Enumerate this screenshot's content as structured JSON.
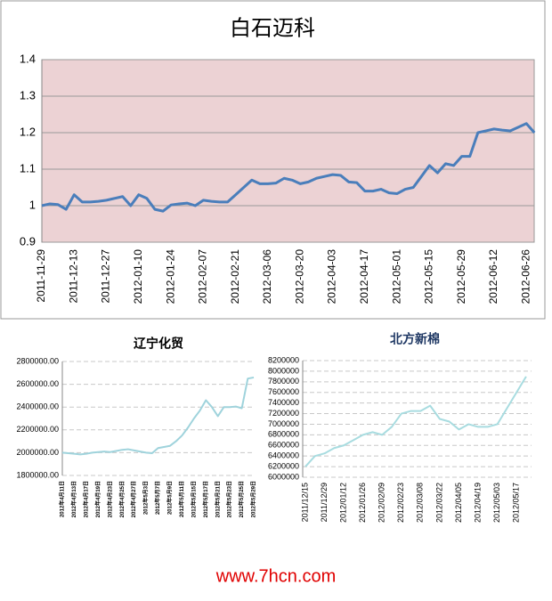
{
  "chart_data": [
    {
      "type": "line",
      "title": "白石迈科",
      "color": "#4a7ebb",
      "grid": true,
      "categories": [
        "2011-11-29",
        null,
        null,
        null,
        "2011-12-13",
        null,
        null,
        null,
        "2011-12-27",
        null,
        null,
        null,
        "2012-01-10",
        null,
        null,
        null,
        "2012-01-24",
        null,
        null,
        null,
        "2012-02-07",
        null,
        null,
        null,
        "2012-02-21",
        null,
        null,
        null,
        "2012-03-06",
        null,
        null,
        null,
        "2012-03-20",
        null,
        null,
        null,
        "2012-04-03",
        null,
        null,
        null,
        "2012-04-17",
        null,
        null,
        null,
        "2012-05-01",
        null,
        null,
        null,
        "2012-05-15",
        null,
        null,
        null,
        "2012-05-29",
        null,
        null,
        null,
        "2012-06-12",
        null,
        null,
        null,
        "2012-06-26",
        null
      ],
      "values": [
        1.0,
        1.005,
        1.003,
        0.99,
        1.03,
        1.01,
        1.01,
        1.012,
        1.015,
        1.02,
        1.025,
        1.0,
        1.03,
        1.02,
        0.99,
        0.985,
        1.002,
        1.005,
        1.007,
        1.0,
        1.015,
        1.012,
        1.01,
        1.01,
        1.03,
        1.05,
        1.07,
        1.06,
        1.06,
        1.062,
        1.075,
        1.07,
        1.06,
        1.065,
        1.075,
        1.08,
        1.085,
        1.083,
        1.065,
        1.063,
        1.04,
        1.04,
        1.045,
        1.035,
        1.033,
        1.045,
        1.05,
        1.08,
        1.11,
        1.09,
        1.115,
        1.11,
        1.135,
        1.135,
        1.2,
        1.205,
        1.21,
        1.207,
        1.205,
        1.215,
        1.225,
        1.2
      ],
      "ylim": [
        0.9,
        1.4
      ],
      "yticks": [
        0.9,
        1,
        1.1,
        1.2,
        1.3,
        1.4
      ]
    },
    {
      "type": "line",
      "title": "辽宁化贸",
      "color": "#9fd3dc",
      "grid": true,
      "categories": [
        "2012年4月11日",
        null,
        "2012年4月13日",
        null,
        "2012年4月17日",
        null,
        "2012年4月19日",
        null,
        "2012年4月23日",
        null,
        "2012年4月25日",
        null,
        "2012年4月27日",
        null,
        "2012年5月3日",
        null,
        "2012年5月7日",
        null,
        "2012年5月9日",
        null,
        "2012年5月11日",
        null,
        "2012年5月15日",
        null,
        "2012年5月17日",
        null,
        "2012年5月21日",
        null,
        "2012年5月23日",
        null,
        "2012年5月25日",
        null,
        "2012年5月29日"
      ],
      "values": [
        2000000,
        1995000,
        1990000,
        1985000,
        1990000,
        2000000,
        2005000,
        2010000,
        2005000,
        2015000,
        2025000,
        2030000,
        2020000,
        2010000,
        2000000,
        1995000,
        2040000,
        2050000,
        2060000,
        2100000,
        2150000,
        2220000,
        2300000,
        2370000,
        2460000,
        2400000,
        2320000,
        2400000,
        2400000,
        2405000,
        2390000,
        2650000,
        2660000
      ],
      "ylim": [
        1800000,
        2800000
      ],
      "yticks": [
        {
          "value": 1800000,
          "label": "1800000.00"
        },
        {
          "value": 2000000,
          "label": "2000000.00"
        },
        {
          "value": 2200000,
          "label": "2200000.00"
        },
        {
          "value": 2400000,
          "label": "2400000.00"
        },
        {
          "value": 2600000,
          "label": "2600000.00"
        },
        {
          "value": 2800000,
          "label": "2800000.00"
        }
      ]
    },
    {
      "type": "line",
      "title": "北方新棉",
      "color": "#a8dce0",
      "grid": true,
      "categories": [
        "2011/12/15",
        null,
        "2011/12/29",
        null,
        "2012/01/12",
        null,
        "2012/01/26",
        null,
        "2012/02/09",
        null,
        "2012/02/23",
        null,
        "2012/03/08",
        null,
        "2012/03/22",
        null,
        "2012/04/05",
        null,
        "2012/04/19",
        null,
        "2012/05/03",
        null,
        "2012/05/17",
        null
      ],
      "values": [
        6200000,
        6400000,
        6450000,
        6550000,
        6600000,
        6700000,
        6800000,
        6850000,
        6800000,
        6950000,
        7200000,
        7250000,
        7250000,
        7350000,
        7100000,
        7050000,
        6900000,
        7000000,
        6950000,
        6950000,
        7000000,
        7300000,
        7600000,
        7900000
      ],
      "ylim": [
        6000000,
        8200000
      ],
      "yticks": [
        6000000,
        6200000,
        6400000,
        6600000,
        6800000,
        7000000,
        7200000,
        7400000,
        7600000,
        7800000,
        8000000,
        8200000
      ]
    }
  ],
  "footer": "www.7hcn.com"
}
